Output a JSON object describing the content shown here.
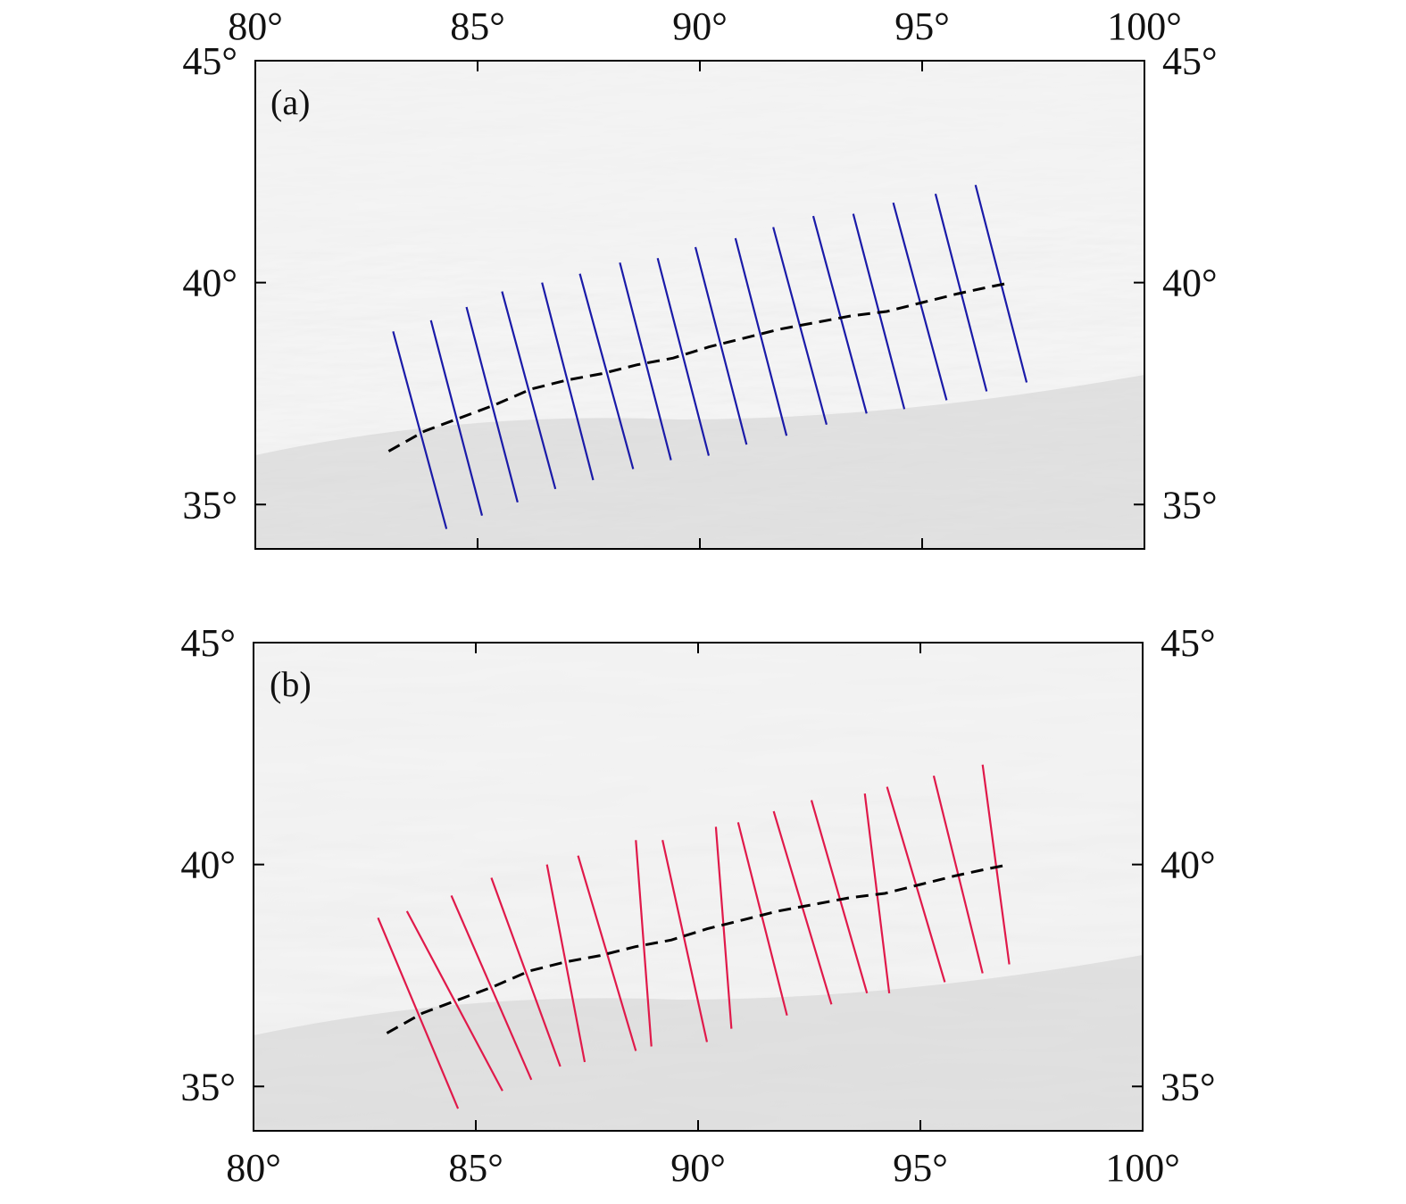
{
  "chart_data": {
    "type": "map",
    "extent": {
      "lon": [
        80,
        100
      ],
      "lat": [
        34,
        45
      ]
    },
    "lon_ticks": [
      80,
      85,
      90,
      95,
      100
    ],
    "lat_ticks": [
      35,
      40,
      45
    ],
    "lon_tick_labels": [
      "80°",
      "85°",
      "90°",
      "95°",
      "100°"
    ],
    "lat_tick_labels": [
      "35°",
      "40°",
      "45°"
    ],
    "colors": {
      "panel_a_profiles": "#1a1aa8",
      "panel_b_profiles": "#e0194a",
      "dashed_line": "#000000",
      "frame": "#000000"
    },
    "dashed_line": [
      [
        83.0,
        36.2
      ],
      [
        83.8,
        36.65
      ],
      [
        84.6,
        36.95
      ],
      [
        85.4,
        37.25
      ],
      [
        86.2,
        37.6
      ],
      [
        87.0,
        37.8
      ],
      [
        87.8,
        37.95
      ],
      [
        88.6,
        38.15
      ],
      [
        89.4,
        38.3
      ],
      [
        90.2,
        38.55
      ],
      [
        91.0,
        38.75
      ],
      [
        91.8,
        38.95
      ],
      [
        92.6,
        39.1
      ],
      [
        93.4,
        39.25
      ],
      [
        94.2,
        39.35
      ],
      [
        95.0,
        39.55
      ],
      [
        95.8,
        39.75
      ],
      [
        96.5,
        39.9
      ],
      [
        97.0,
        40.0
      ]
    ],
    "panels": [
      {
        "label": "(a)",
        "profiles": [
          {
            "start": [
              83.1,
              38.9
            ],
            "end": [
              84.3,
              34.45
            ]
          },
          {
            "start": [
              83.95,
              39.15
            ],
            "end": [
              85.1,
              34.75
            ]
          },
          {
            "start": [
              84.75,
              39.45
            ],
            "end": [
              85.9,
              35.05
            ]
          },
          {
            "start": [
              85.55,
              39.8
            ],
            "end": [
              86.75,
              35.35
            ]
          },
          {
            "start": [
              86.45,
              40.0
            ],
            "end": [
              87.6,
              35.55
            ]
          },
          {
            "start": [
              87.3,
              40.2
            ],
            "end": [
              88.5,
              35.8
            ]
          },
          {
            "start": [
              88.2,
              40.45
            ],
            "end": [
              89.35,
              36.0
            ]
          },
          {
            "start": [
              89.05,
              40.55
            ],
            "end": [
              90.2,
              36.1
            ]
          },
          {
            "start": [
              89.9,
              40.8
            ],
            "end": [
              91.05,
              36.35
            ]
          },
          {
            "start": [
              90.8,
              41.0
            ],
            "end": [
              91.95,
              36.55
            ]
          },
          {
            "start": [
              91.65,
              41.25
            ],
            "end": [
              92.85,
              36.8
            ]
          },
          {
            "start": [
              92.55,
              41.5
            ],
            "end": [
              93.75,
              37.05
            ]
          },
          {
            "start": [
              93.45,
              41.55
            ],
            "end": [
              94.6,
              37.15
            ]
          },
          {
            "start": [
              94.35,
              41.8
            ],
            "end": [
              95.55,
              37.35
            ]
          },
          {
            "start": [
              95.3,
              42.0
            ],
            "end": [
              96.45,
              37.55
            ]
          },
          {
            "start": [
              96.2,
              42.2
            ],
            "end": [
              97.35,
              37.75
            ]
          }
        ]
      },
      {
        "label": "(b)",
        "profiles": [
          {
            "start": [
              82.8,
              38.8
            ],
            "end": [
              84.6,
              34.5
            ]
          },
          {
            "start": [
              83.45,
              38.95
            ],
            "end": [
              85.6,
              34.9
            ]
          },
          {
            "start": [
              84.45,
              39.3
            ],
            "end": [
              86.25,
              35.15
            ]
          },
          {
            "start": [
              85.35,
              39.7
            ],
            "end": [
              86.9,
              35.45
            ]
          },
          {
            "start": [
              86.6,
              40.0
            ],
            "end": [
              87.45,
              35.55
            ]
          },
          {
            "start": [
              87.3,
              40.2
            ],
            "end": [
              88.6,
              35.8
            ]
          },
          {
            "start": [
              88.6,
              40.55
            ],
            "end": [
              88.95,
              35.9
            ]
          },
          {
            "start": [
              89.2,
              40.55
            ],
            "end": [
              90.2,
              36.0
            ]
          },
          {
            "start": [
              90.4,
              40.85
            ],
            "end": [
              90.75,
              36.3
            ]
          },
          {
            "start": [
              90.9,
              40.95
            ],
            "end": [
              92.0,
              36.6
            ]
          },
          {
            "start": [
              91.7,
              41.2
            ],
            "end": [
              93.0,
              36.85
            ]
          },
          {
            "start": [
              92.55,
              41.45
            ],
            "end": [
              93.8,
              37.1
            ]
          },
          {
            "start": [
              93.75,
              41.6
            ],
            "end": [
              94.3,
              37.1
            ]
          },
          {
            "start": [
              94.25,
              41.75
            ],
            "end": [
              95.55,
              37.35
            ]
          },
          {
            "start": [
              95.3,
              42.0
            ],
            "end": [
              96.4,
              37.55
            ]
          },
          {
            "start": [
              96.4,
              42.25
            ],
            "end": [
              97.0,
              37.75
            ]
          }
        ]
      }
    ]
  }
}
